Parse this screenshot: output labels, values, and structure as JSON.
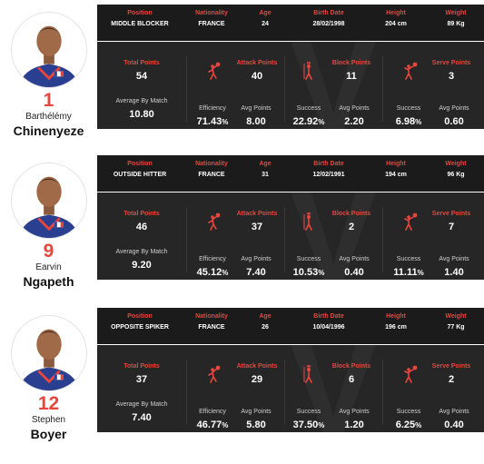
{
  "headers": {
    "position": "Position",
    "nationality": "Nationality",
    "age": "Age",
    "birth_date": "Birth Date",
    "height": "Height",
    "weight": "Weight",
    "total_points": "Total Points",
    "attack_points": "Attack Points",
    "block_points": "Block Points",
    "serve_points": "Serve Points",
    "average_by_match": "Average By Match",
    "efficiency": "Efficiency",
    "avg_points": "Avg Points",
    "success": "Success"
  },
  "colors": {
    "accent": "#e8453c",
    "panel": "#262626",
    "topbar": "#1b1b1b"
  },
  "icons": [
    "attack-player-icon",
    "block-player-icon",
    "serve-player-icon"
  ],
  "players": [
    {
      "number": "1",
      "first_name": "Barthélémy",
      "last_name": "Chinenyeze",
      "position": "MIDDLE BLOCKER",
      "nationality": "FRANCE",
      "age": "24",
      "birth_date": "28/02/1998",
      "height": "204 cm",
      "weight": "89 Kg",
      "total_points": "54",
      "average_by_match": "10.80",
      "attack_points": "40",
      "attack_efficiency": "71.43",
      "attack_avg": "8.00",
      "block_points": "11",
      "block_success": "22.92",
      "block_avg": "2.20",
      "serve_points": "3",
      "serve_success": "6.98",
      "serve_avg": "0.60",
      "pct_sign": "%"
    },
    {
      "number": "9",
      "first_name": "Earvin",
      "last_name": "Ngapeth",
      "position": "OUTSIDE HITTER",
      "nationality": "FRANCE",
      "age": "31",
      "birth_date": "12/02/1991",
      "height": "194 cm",
      "weight": "96 Kg",
      "total_points": "46",
      "average_by_match": "9.20",
      "attack_points": "37",
      "attack_efficiency": "45.12",
      "attack_avg": "7.40",
      "block_points": "2",
      "block_success": "10.53",
      "block_avg": "0.40",
      "serve_points": "7",
      "serve_success": "11.11",
      "serve_avg": "1.40",
      "pct_sign": "%"
    },
    {
      "number": "12",
      "first_name": "Stephen",
      "last_name": "Boyer",
      "position": "OPPOSITE SPIKER",
      "nationality": "FRANCE",
      "age": "26",
      "birth_date": "10/04/1996",
      "height": "196 cm",
      "weight": "77 Kg",
      "total_points": "37",
      "average_by_match": "7.40",
      "attack_points": "29",
      "attack_efficiency": "46.77",
      "attack_avg": "5.80",
      "block_points": "6",
      "block_success": "37.50",
      "block_avg": "1.20",
      "serve_points": "2",
      "serve_success": "6.25",
      "serve_avg": "0.40",
      "pct_sign": "%"
    }
  ]
}
